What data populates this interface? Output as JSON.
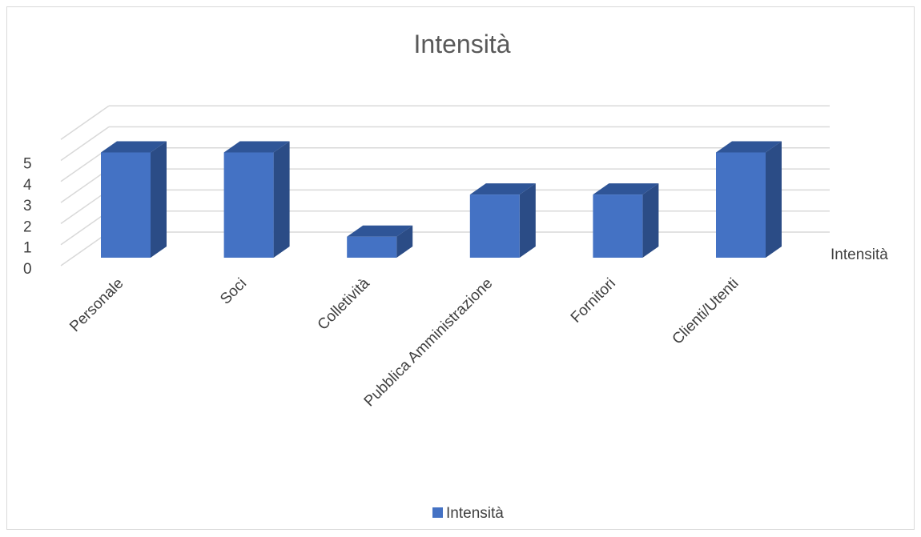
{
  "chart_data": {
    "type": "bar",
    "title": "Intensità",
    "categories": [
      "Personale",
      "Soci",
      "Colletività",
      "Pubblica Amministrazione",
      "Fornitori",
      "Clienti/Utenti"
    ],
    "series": [
      {
        "name": "Intensità",
        "values": [
          5,
          5,
          1,
          3,
          3,
          5
        ]
      }
    ],
    "ylim": [
      0,
      6
    ],
    "yticks": [
      "0",
      "1",
      "2",
      "3",
      "4",
      "5"
    ],
    "depth_axis_label": "Intensità",
    "legend": {
      "position": "bottom",
      "labels": [
        "Intensità"
      ]
    },
    "grid": true,
    "colors": {
      "bar_front": "#4472C4",
      "bar_top": "#2F5597",
      "bar_side": "#2B4C86",
      "grid": "#d9d9d9",
      "text": "#404040",
      "title": "#595959"
    }
  }
}
